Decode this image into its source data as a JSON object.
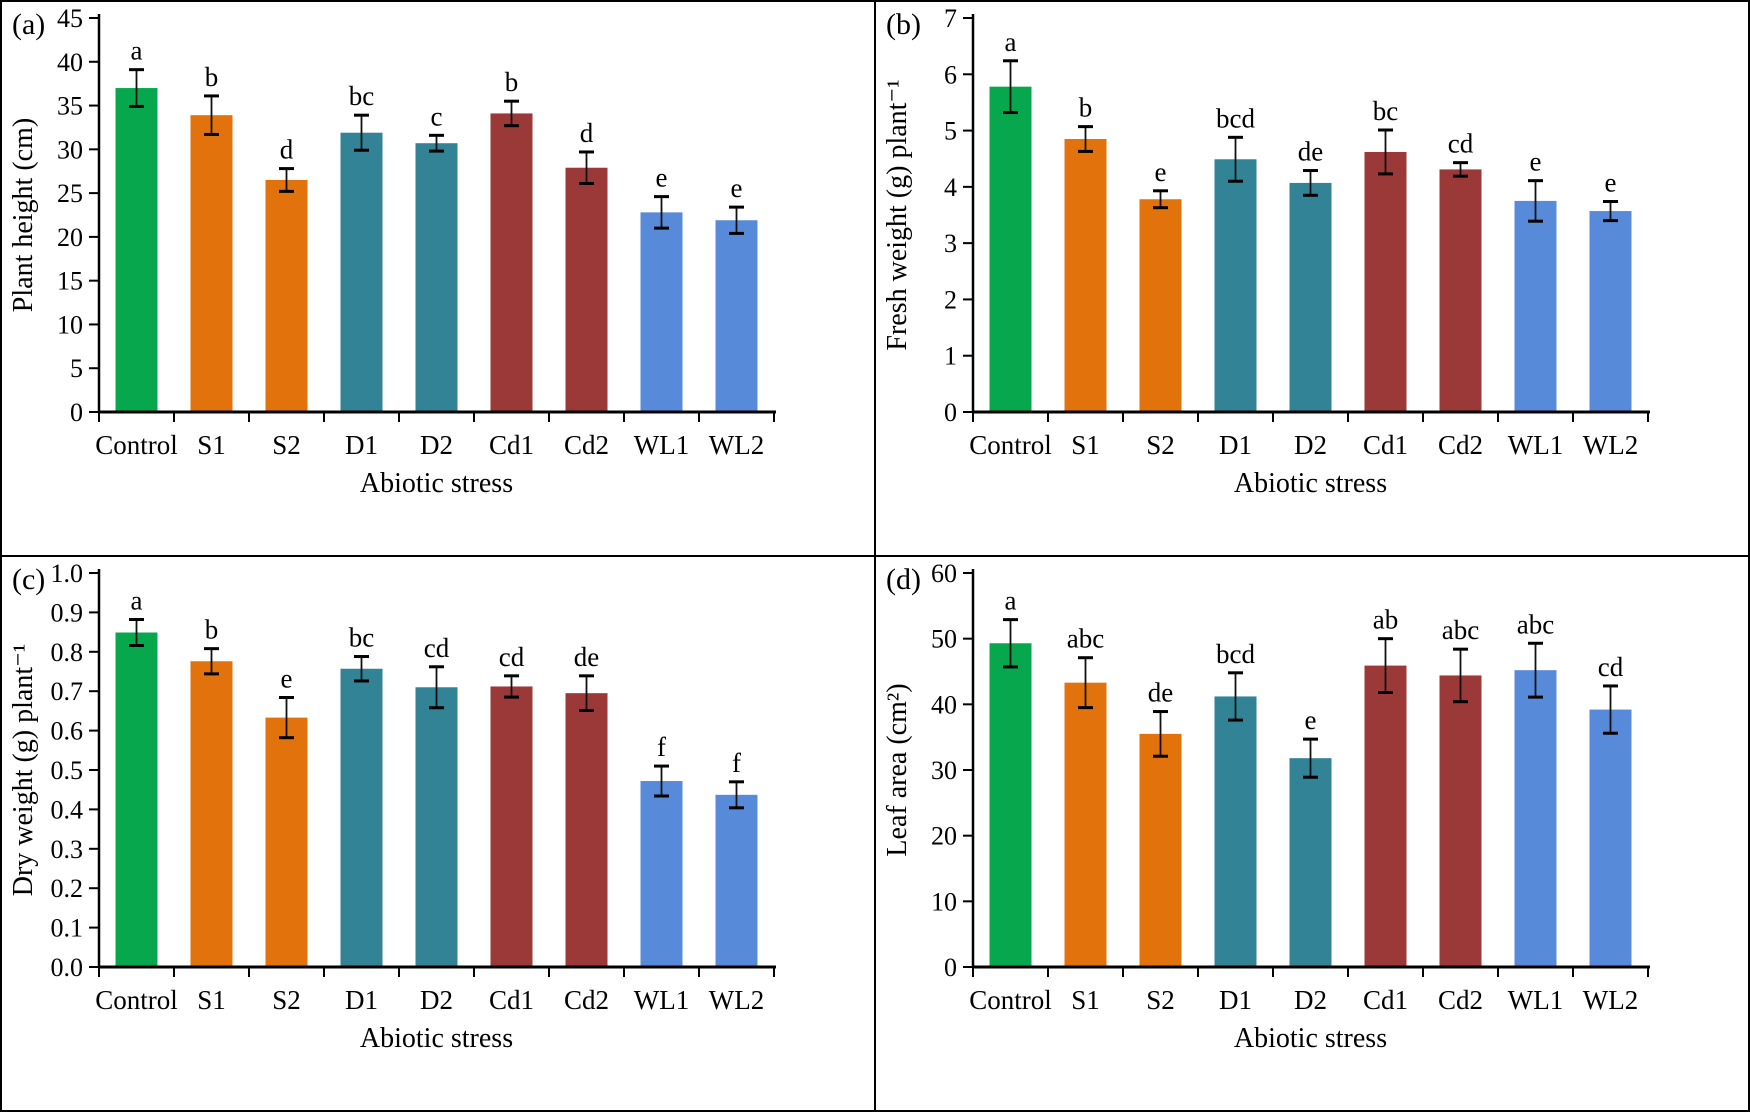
{
  "figure": {
    "description": "Four-panel bar chart figure of plant growth parameters under abiotic stress",
    "category_colors": [
      "#07A84D",
      "#E2720C",
      "#E2720C",
      "#338396",
      "#338396",
      "#9A3937",
      "#9A3937",
      "#578BD9",
      "#578BD9"
    ],
    "axis_color": "#000000",
    "error_bar_color": "#111111"
  },
  "chart_data": [
    {
      "tag": "(a)",
      "type": "bar",
      "title": "Plant height",
      "ylabel": "Plant height (cm)",
      "xlabel": "Abiotic stress",
      "categories": [
        "Control",
        "S1",
        "S2",
        "D1",
        "D2",
        "Cd1",
        "Cd2",
        "WL1",
        "WL2"
      ],
      "values": [
        37.0,
        33.9,
        26.5,
        31.9,
        30.7,
        34.1,
        27.9,
        22.8,
        21.9
      ],
      "errors": [
        2.1,
        2.2,
        1.3,
        2.0,
        0.9,
        1.4,
        1.8,
        1.8,
        1.5
      ],
      "letters": [
        "a",
        "b",
        "d",
        "bc",
        "c",
        "b",
        "d",
        "e",
        "e"
      ],
      "ylim": [
        0,
        45
      ],
      "ytick_step": 5,
      "y_decimals": 0,
      "grid": false,
      "legend": "none"
    },
    {
      "tag": "(b)",
      "type": "bar",
      "title": "Fresh weight",
      "ylabel": "Fresh weight (g) plant⁻¹",
      "xlabel": "Abiotic stress",
      "categories": [
        "Control",
        "S1",
        "S2",
        "D1",
        "D2",
        "Cd1",
        "Cd2",
        "WL1",
        "WL2"
      ],
      "values": [
        5.78,
        4.85,
        3.78,
        4.49,
        4.07,
        4.62,
        4.31,
        3.75,
        3.57
      ],
      "errors": [
        0.46,
        0.22,
        0.15,
        0.39,
        0.22,
        0.39,
        0.12,
        0.36,
        0.17
      ],
      "letters": [
        "a",
        "b",
        "e",
        "bcd",
        "de",
        "bc",
        "cd",
        "e",
        "e"
      ],
      "ylim": [
        0,
        7
      ],
      "ytick_step": 1,
      "y_decimals": 0,
      "grid": false,
      "legend": "none"
    },
    {
      "tag": "(c)",
      "type": "bar",
      "title": "Dry weight",
      "ylabel": "Dry weight (g) plant⁻¹",
      "xlabel": "Abiotic stress",
      "categories": [
        "Control",
        "S1",
        "S2",
        "D1",
        "D2",
        "Cd1",
        "Cd2",
        "WL1",
        "WL2"
      ],
      "values": [
        0.849,
        0.776,
        0.633,
        0.757,
        0.71,
        0.712,
        0.695,
        0.472,
        0.437
      ],
      "errors": [
        0.033,
        0.032,
        0.051,
        0.031,
        0.052,
        0.027,
        0.044,
        0.038,
        0.033
      ],
      "letters": [
        "a",
        "b",
        "e",
        "bc",
        "cd",
        "cd",
        "de",
        "f",
        "f"
      ],
      "ylim": [
        0,
        1.0
      ],
      "ytick_step": 0.1,
      "y_decimals": 1,
      "grid": false,
      "legend": "none"
    },
    {
      "tag": "(d)",
      "type": "bar",
      "title": "Leaf area",
      "ylabel": "Leaf area (cm²)",
      "xlabel": "Abiotic stress",
      "categories": [
        "Control",
        "S1",
        "S2",
        "D1",
        "D2",
        "Cd1",
        "Cd2",
        "WL1",
        "WL2"
      ],
      "values": [
        49.3,
        43.3,
        35.5,
        41.2,
        31.8,
        45.9,
        44.4,
        45.2,
        39.2
      ],
      "errors": [
        3.6,
        3.8,
        3.4,
        3.6,
        2.9,
        4.1,
        4.0,
        4.1,
        3.6
      ],
      "letters": [
        "a",
        "abc",
        "de",
        "bcd",
        "e",
        "ab",
        "abc",
        "abc",
        "cd"
      ],
      "ylim": [
        0,
        60
      ],
      "ytick_step": 10,
      "y_decimals": 0,
      "grid": false,
      "legend": "none"
    }
  ]
}
